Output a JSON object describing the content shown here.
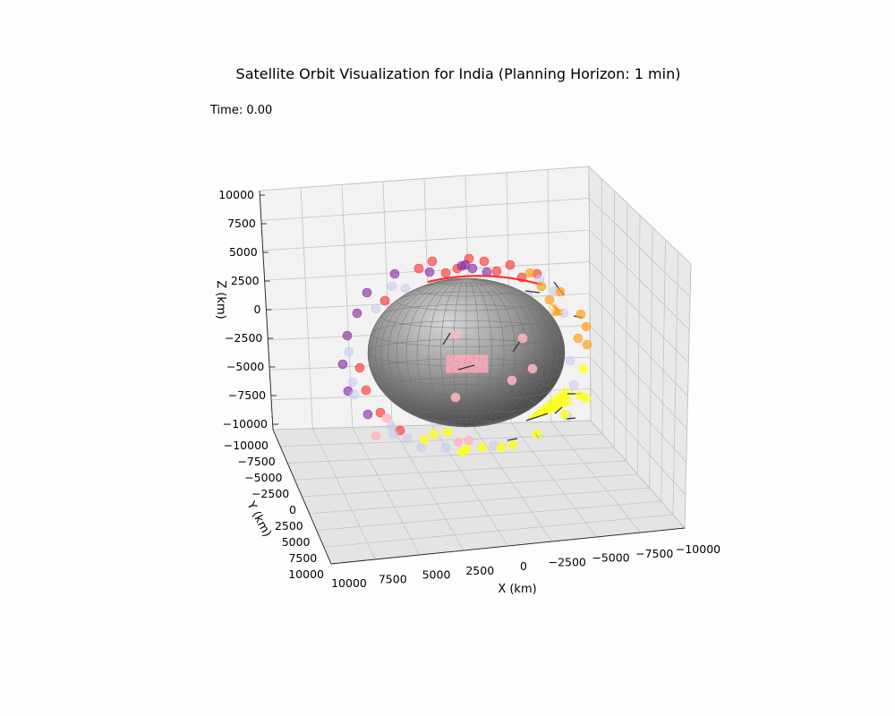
{
  "chart_data": {
    "type": "scatter",
    "title": "Satellite Orbit Visualization for India (Planning Horizon: 1 min)",
    "time_label": "Time: 0.00",
    "xlabel": "X (km)",
    "ylabel": "Y (km)",
    "zlabel": "Z (km)",
    "xlim": [
      -10000,
      10000
    ],
    "ylim": [
      -10000,
      10000
    ],
    "zlim": [
      -10000,
      10000
    ],
    "x_ticks": [
      "10000",
      "7500",
      "5000",
      "2500",
      "0",
      "−2500",
      "−5000",
      "−7500",
      "−10000"
    ],
    "y_ticks": [
      "−10000",
      "−7500",
      "−5000",
      "−2500",
      "0",
      "2500",
      "5000",
      "7500",
      "10000"
    ],
    "z_ticks": [
      "10000",
      "7500",
      "5000",
      "2500",
      "0",
      "−2500",
      "−5000",
      "−7500",
      "−10000"
    ],
    "grid": true,
    "earth_radius_km": 6371,
    "colors": {
      "earth": "#8a8a8a",
      "ground_region": "#ffb6c1",
      "red_orbit": "#ff2a2a",
      "purple_orbit": "#8b2ea8",
      "orange_orbit": "#ffa31a",
      "yellow_orbit": "#ffff1a",
      "pink_sats": "#ffb6c1",
      "lavender_sats": "#c8c8f0"
    }
  }
}
